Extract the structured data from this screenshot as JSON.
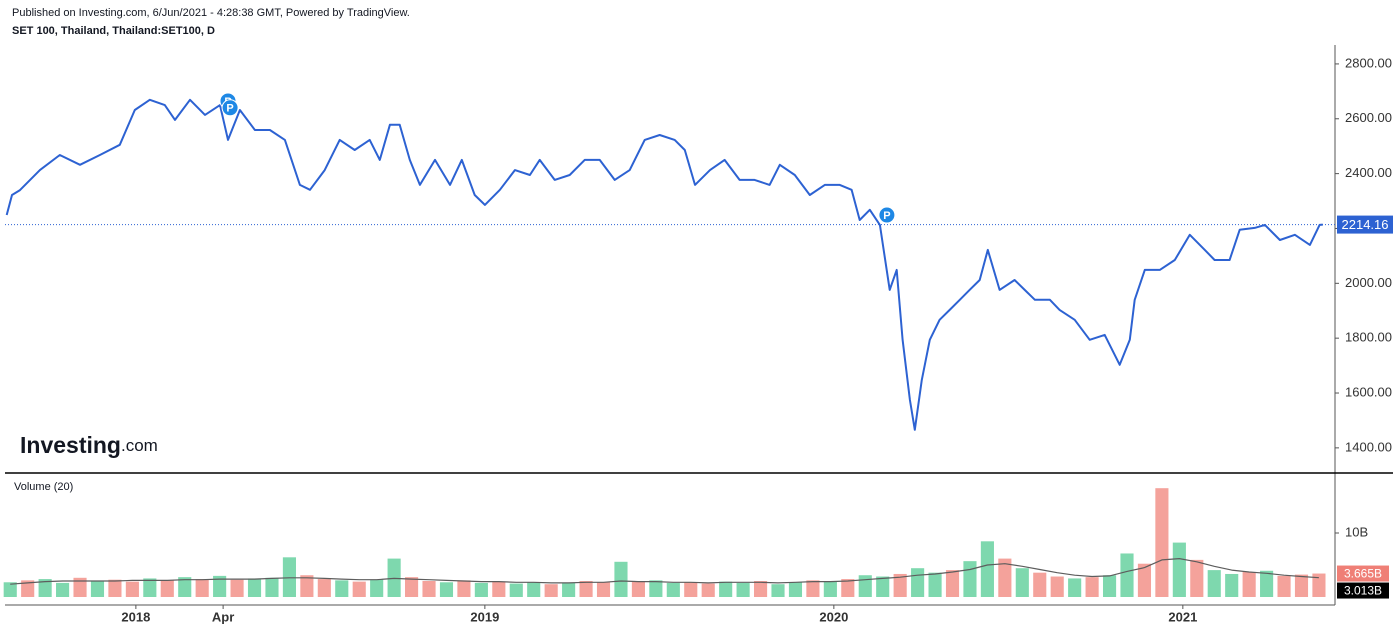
{
  "header": {
    "published": "Published on Investing.com, 6/Jun/2021 - 4:28:38 GMT, Powered by TradingView."
  },
  "logo": {
    "brand": "Investing",
    "suffix": ".com"
  },
  "chart_data": [
    {
      "type": "line",
      "title": "SET 100, Thailand, Thailand:SET100, D",
      "x": [
        2017.63,
        2017.645,
        2017.668,
        2017.725,
        2017.782,
        2017.84,
        2017.897,
        2017.954,
        2017.997,
        2018.04,
        2018.083,
        2018.112,
        2018.155,
        2018.198,
        2018.241,
        2018.264,
        2018.298,
        2018.341,
        2018.384,
        2018.427,
        2018.47,
        2018.499,
        2018.541,
        2018.584,
        2018.627,
        2018.67,
        2018.699,
        2018.728,
        2018.756,
        2018.785,
        2018.814,
        2018.857,
        2018.9,
        2018.934,
        2018.971,
        2019.0,
        2019.043,
        2019.086,
        2019.129,
        2019.157,
        2019.2,
        2019.243,
        2019.286,
        2019.329,
        2019.372,
        2019.415,
        2019.458,
        2019.501,
        2019.544,
        2019.573,
        2019.602,
        2019.645,
        2019.687,
        2019.73,
        2019.773,
        2019.816,
        2019.845,
        2019.888,
        2019.931,
        2019.974,
        2020.017,
        2020.051,
        2020.074,
        2020.103,
        2020.132,
        2020.16,
        2020.18,
        2020.197,
        2020.218,
        2020.232,
        2020.252,
        2020.275,
        2020.303,
        2020.332,
        2020.361,
        2020.389,
        2020.418,
        2020.441,
        2020.475,
        2020.518,
        2020.547,
        2020.576,
        2020.619,
        2020.647,
        2020.69,
        2020.733,
        2020.776,
        2020.819,
        2020.848,
        2020.862,
        2020.891,
        2020.934,
        2020.977,
        2021.02,
        2021.063,
        2021.091,
        2021.134,
        2021.163,
        2021.206,
        2021.235,
        2021.278,
        2021.321,
        2021.364,
        2021.392,
        2021.401
      ],
      "series": [
        {
          "color": "#2d62d2",
          "values": [
            2249,
            2322,
            2340,
            2413,
            2468,
            2432,
            2468,
            2505,
            2632,
            2669,
            2650,
            2596,
            2669,
            2614,
            2650,
            2523,
            2632,
            2559,
            2559,
            2523,
            2359,
            2341,
            2413,
            2523,
            2486,
            2523,
            2450,
            2578,
            2578,
            2450,
            2359,
            2450,
            2359,
            2450,
            2322,
            2286,
            2341,
            2413,
            2395,
            2450,
            2377,
            2395,
            2450,
            2450,
            2377,
            2413,
            2523,
            2541,
            2523,
            2486,
            2359,
            2413,
            2450,
            2377,
            2377,
            2359,
            2432,
            2395,
            2322,
            2359,
            2359,
            2341,
            2231,
            2268,
            2213,
            1976,
            2049,
            1794,
            1575,
            1466,
            1648,
            1794,
            1867,
            1903,
            1940,
            1976,
            2012,
            2122,
            1976,
            2012,
            1976,
            1940,
            1940,
            1903,
            1867,
            1794,
            1812,
            1703,
            1794,
            1940,
            2049,
            2049,
            2085,
            2177,
            2122,
            2085,
            2085,
            2195,
            2202,
            2213,
            2158,
            2177,
            2140,
            2213,
            2214.16
          ]
        }
      ],
      "xlim": [
        2017.625,
        2021.436
      ],
      "ylim": [
        1312,
        2869
      ],
      "yticks": [
        {
          "value": 1400,
          "label": "1400.00"
        },
        {
          "value": 1600,
          "label": "1600.00"
        },
        {
          "value": 1800,
          "label": "1800.00"
        },
        {
          "value": 2000,
          "label": "2000.00"
        },
        {
          "value": 2200,
          "label": "2200.00"
        },
        {
          "value": 2400,
          "label": "2400.00"
        },
        {
          "value": 2600,
          "label": "2600.00"
        },
        {
          "value": 2800,
          "label": "2800.00"
        }
      ],
      "annotations": [
        {
          "x": 2018.264,
          "y": 2665,
          "label": "P"
        },
        {
          "x": 2018.27,
          "y": 2640,
          "label": "P"
        },
        {
          "x": 2020.152,
          "y": 2249,
          "label": "P"
        }
      ],
      "annotation_color": "#1e88e5"
    },
    {
      "type": "volume",
      "title": "Volume (20)",
      "x": [
        2017.64,
        2017.69,
        2017.74,
        2017.79,
        2017.84,
        2017.89,
        2017.94,
        2017.99,
        2018.04,
        2018.09,
        2018.14,
        2018.19,
        2018.24,
        2018.29,
        2018.34,
        2018.39,
        2018.44,
        2018.49,
        2018.54,
        2018.59,
        2018.64,
        2018.69,
        2018.74,
        2018.79,
        2018.84,
        2018.89,
        2018.94,
        2018.99,
        2019.04,
        2019.09,
        2019.14,
        2019.19,
        2019.24,
        2019.29,
        2019.34,
        2019.39,
        2019.44,
        2019.49,
        2019.54,
        2019.59,
        2019.64,
        2019.69,
        2019.74,
        2019.79,
        2019.84,
        2019.89,
        2019.94,
        2019.99,
        2020.04,
        2020.09,
        2020.14,
        2020.19,
        2020.24,
        2020.29,
        2020.34,
        2020.39,
        2020.44,
        2020.49,
        2020.54,
        2020.59,
        2020.64,
        2020.69,
        2020.74,
        2020.79,
        2020.84,
        2020.89,
        2020.94,
        2020.99,
        2021.04,
        2021.09,
        2021.14,
        2021.19,
        2021.24,
        2021.29,
        2021.34,
        2021.39
      ],
      "series": [
        {
          "type": "bar",
          "colors": [
            "#7ed8ae",
            "#f4a29b",
            "#7ed8ae",
            "#7ed8ae",
            "#f4a29b",
            "#7ed8ae",
            "#f4a29b",
            "#f4a29b",
            "#7ed8ae",
            "#f4a29b",
            "#7ed8ae",
            "#f4a29b",
            "#7ed8ae",
            "#f4a29b",
            "#7ed8ae",
            "#7ed8ae",
            "#7ed8ae",
            "#f4a29b",
            "#f4a29b",
            "#7ed8ae",
            "#f4a29b",
            "#7ed8ae",
            "#7ed8ae",
            "#f4a29b",
            "#f4a29b",
            "#7ed8ae",
            "#f4a29b",
            "#7ed8ae",
            "#f4a29b",
            "#7ed8ae",
            "#7ed8ae",
            "#f4a29b",
            "#7ed8ae",
            "#f4a29b",
            "#f4a29b",
            "#7ed8ae",
            "#f4a29b",
            "#7ed8ae",
            "#7ed8ae",
            "#f4a29b",
            "#f4a29b",
            "#7ed8ae",
            "#7ed8ae",
            "#f4a29b",
            "#7ed8ae",
            "#7ed8ae",
            "#f4a29b",
            "#7ed8ae",
            "#f4a29b",
            "#7ed8ae",
            "#7ed8ae",
            "#f4a29b",
            "#7ed8ae",
            "#7ed8ae",
            "#f4a29b",
            "#7ed8ae",
            "#7ed8ae",
            "#f4a29b",
            "#7ed8ae",
            "#f4a29b",
            "#f4a29b",
            "#7ed8ae",
            "#f4a29b",
            "#7ed8ae",
            "#7ed8ae",
            "#f4a29b",
            "#f4a29b",
            "#7ed8ae",
            "#f4a29b",
            "#7ed8ae",
            "#7ed8ae",
            "#f4a29b",
            "#7ed8ae",
            "#f4a29b",
            "#f4a29b",
            "#f4a29b"
          ],
          "values": [
            2.3,
            2.6,
            2.8,
            2.2,
            3.0,
            2.5,
            2.7,
            2.4,
            2.9,
            2.6,
            3.1,
            2.8,
            3.3,
            2.7,
            2.9,
            3.0,
            6.2,
            3.4,
            2.8,
            2.6,
            2.4,
            2.7,
            6.0,
            3.1,
            2.5,
            2.3,
            2.6,
            2.2,
            2.4,
            2.1,
            2.3,
            2.0,
            2.2,
            2.5,
            2.3,
            5.5,
            2.4,
            2.6,
            2.2,
            2.3,
            2.1,
            2.4,
            2.2,
            2.5,
            2.0,
            2.3,
            2.6,
            2.4,
            2.8,
            3.4,
            3.2,
            3.6,
            4.5,
            3.8,
            4.2,
            5.6,
            8.7,
            6.0,
            4.5,
            3.8,
            3.2,
            2.9,
            3.1,
            3.4,
            6.8,
            5.2,
            17.0,
            8.5,
            5.8,
            4.2,
            3.6,
            3.9,
            4.1,
            3.3,
            3.5,
            3.665
          ],
          "last_label": "3.665B",
          "label_color": "#ef7f76"
        },
        {
          "type": "line",
          "color": "#5d5d5d",
          "values": [
            2.0,
            2.2,
            2.4,
            2.5,
            2.5,
            2.5,
            2.5,
            2.6,
            2.6,
            2.6,
            2.7,
            2.7,
            2.8,
            2.8,
            2.8,
            2.9,
            3.0,
            3.0,
            2.9,
            2.8,
            2.7,
            2.7,
            2.9,
            2.8,
            2.7,
            2.6,
            2.5,
            2.4,
            2.4,
            2.3,
            2.3,
            2.2,
            2.2,
            2.3,
            2.3,
            2.5,
            2.4,
            2.4,
            2.3,
            2.3,
            2.2,
            2.3,
            2.3,
            2.3,
            2.2,
            2.3,
            2.4,
            2.4,
            2.5,
            2.7,
            2.9,
            3.1,
            3.4,
            3.6,
            3.9,
            4.3,
            5.0,
            5.2,
            4.8,
            4.3,
            3.8,
            3.4,
            3.2,
            3.3,
            4.0,
            4.6,
            5.8,
            6.0,
            5.5,
            4.8,
            4.2,
            3.9,
            3.7,
            3.4,
            3.2,
            3.013
          ],
          "last_label": "3.013B",
          "label_color": "#000000"
        }
      ],
      "xlim": [
        2017.625,
        2021.436
      ],
      "ylim": [
        -1.25,
        19.06
      ],
      "yticks": [
        {
          "value": 10,
          "label": "10B"
        }
      ],
      "xticks": [
        {
          "value": 2018,
          "label": "2018"
        },
        {
          "value": 2018.25,
          "label": "Apr"
        },
        {
          "value": 2019,
          "label": "2019"
        },
        {
          "value": 2020,
          "label": "2020"
        },
        {
          "value": 2021,
          "label": "2021"
        }
      ]
    }
  ]
}
